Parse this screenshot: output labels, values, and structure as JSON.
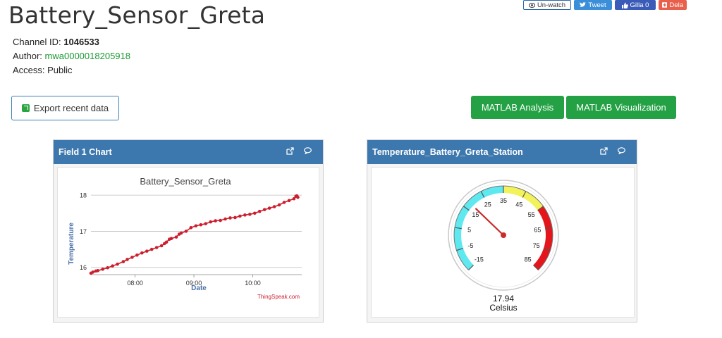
{
  "page": {
    "title": "Battery_Sensor_Greta"
  },
  "channel": {
    "id_label": "Channel ID:",
    "id_value": "1046533",
    "author_label": "Author:",
    "author_value": "mwa0000018205918",
    "access_label": "Access:",
    "access_value": "Public"
  },
  "social": {
    "unwatch": "Un-watch",
    "tweet": "Tweet",
    "gilla": "Gilla 0",
    "dela": "Dela"
  },
  "actions": {
    "export": "Export recent data",
    "matlab_analysis": "MATLAB Analysis",
    "matlab_visualization": "MATLAB Visualization"
  },
  "panel1": {
    "title": "Field 1 Chart"
  },
  "panel2": {
    "title": "Temperature_Battery_Greta_Station"
  },
  "gauge": {
    "value": 17.94,
    "value_label": "17.94",
    "unit": "Celsius",
    "min": -15,
    "max": 85,
    "ticks": [
      "-15",
      "-5",
      "5",
      "15",
      "25",
      "35",
      "45",
      "55",
      "65",
      "75",
      "85"
    ],
    "bands": [
      {
        "from": -15,
        "to": 35,
        "color": "#5ee8f0"
      },
      {
        "from": 35,
        "to": 55,
        "color": "#f2f25a"
      },
      {
        "from": 55,
        "to": 85,
        "color": "#e4161c"
      }
    ],
    "needle_color": "#cc2b2b"
  },
  "chart_data": {
    "type": "line",
    "title": "Battery_Sensor_Greta",
    "xlabel": "Date",
    "ylabel": "Temperature",
    "credit": "ThingSpeak.com",
    "x_tick_labels": [
      "08:00",
      "09:00",
      "10:00"
    ],
    "y_tick_labels": [
      "16",
      "17",
      "18"
    ],
    "xlim": [
      "07:15",
      "10:50"
    ],
    "ylim": [
      15.8,
      18.1
    ],
    "grid": true,
    "legend": "none",
    "series": [
      {
        "color": "#cc1f2e",
        "x": [
          "07:15",
          "07:17",
          "07:20",
          "07:22",
          "07:27",
          "07:32",
          "07:37",
          "07:42",
          "07:48",
          "07:52",
          "07:57",
          "08:02",
          "08:07",
          "08:12",
          "08:17",
          "08:22",
          "08:27",
          "08:30",
          "08:32",
          "08:35",
          "08:37",
          "08:42",
          "08:45",
          "08:47",
          "08:52",
          "08:57",
          "09:02",
          "09:07",
          "09:12",
          "09:17",
          "09:22",
          "09:27",
          "09:32",
          "09:37",
          "09:42",
          "09:47",
          "09:52",
          "09:57",
          "10:02",
          "10:07",
          "10:12",
          "10:17",
          "10:22",
          "10:27",
          "10:32",
          "10:37",
          "10:42",
          "10:44",
          "10:45",
          "10:46"
        ],
        "y": [
          15.84,
          15.87,
          15.9,
          15.91,
          15.95,
          15.99,
          16.04,
          16.09,
          16.16,
          16.22,
          16.28,
          16.34,
          16.4,
          16.45,
          16.5,
          16.55,
          16.6,
          16.66,
          16.7,
          16.78,
          16.8,
          16.84,
          16.92,
          16.95,
          17.0,
          17.1,
          17.15,
          17.18,
          17.21,
          17.26,
          17.29,
          17.3,
          17.34,
          17.37,
          17.38,
          17.42,
          17.45,
          17.47,
          17.5,
          17.55,
          17.6,
          17.64,
          17.68,
          17.73,
          17.8,
          17.85,
          17.9,
          17.97,
          17.98,
          17.94
        ]
      }
    ]
  }
}
